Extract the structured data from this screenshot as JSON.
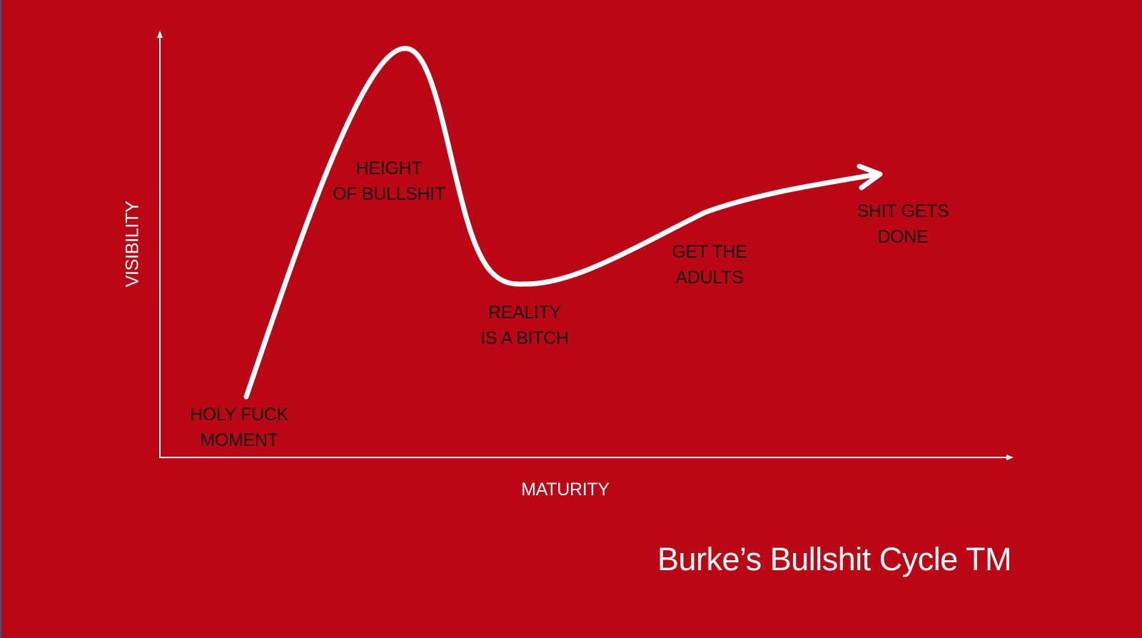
{
  "diagram": {
    "x_axis_label": "MATURITY",
    "y_axis_label": "VISIBILITY",
    "phases": [
      {
        "id": "trigger",
        "lines": [
          "HOLY FUCK",
          "MOMENT"
        ]
      },
      {
        "id": "peak",
        "lines": [
          "HEIGHT",
          "OF BULLSHIT"
        ]
      },
      {
        "id": "trough",
        "lines": [
          "REALITY",
          "IS A BITCH"
        ]
      },
      {
        "id": "slope",
        "lines": [
          "GET THE",
          "ADULTS"
        ]
      },
      {
        "id": "plateau",
        "lines": [
          "SHIT GETS",
          "DONE"
        ]
      }
    ],
    "colors": {
      "background": "#bb0715",
      "curve": "#ffffff",
      "axes": "#ffffff",
      "phase_text": "#111111"
    }
  },
  "footer": {
    "title": "Burke’s Bullshit Cycle TM"
  }
}
